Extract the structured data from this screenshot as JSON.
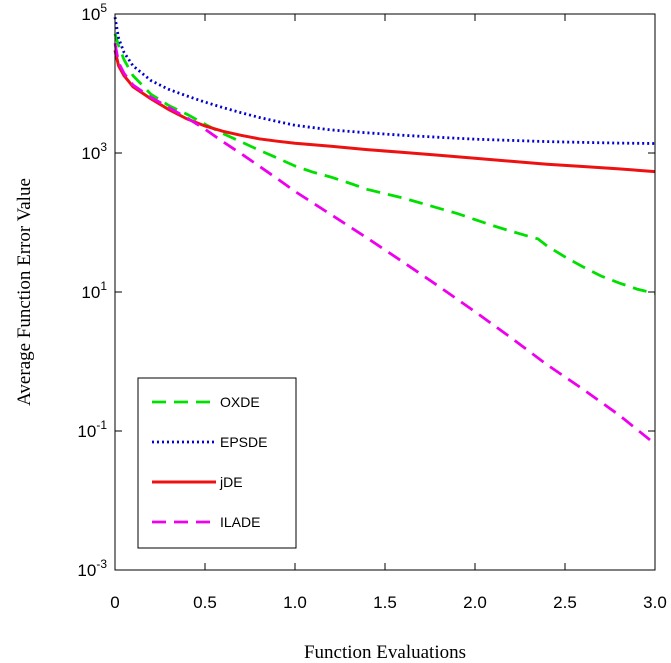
{
  "chart_data": {
    "type": "line",
    "title": "",
    "xlabel": "Function Evaluations",
    "ylabel": "Average Function  Error Value",
    "xlim": [
      0,
      3.0
    ],
    "ylim": [
      0.001,
      100000
    ],
    "yscale": "log",
    "grid": false,
    "legend_position": "bottom-left",
    "x_ticks": [
      {
        "value": 0,
        "label": "0"
      },
      {
        "value": 0.5,
        "label": "0.5"
      },
      {
        "value": 1.0,
        "label": "1.0"
      },
      {
        "value": 1.5,
        "label": "1.5"
      },
      {
        "value": 2.0,
        "label": "2.0"
      },
      {
        "value": 2.5,
        "label": "2.5"
      },
      {
        "value": 3.0,
        "label": "3.0"
      }
    ],
    "y_ticks": [
      {
        "value": 100000,
        "base": "10",
        "exp": "5"
      },
      {
        "value": 1000,
        "base": "10",
        "exp": "3"
      },
      {
        "value": 10,
        "base": "10",
        "exp": "1"
      },
      {
        "value": 0.1,
        "base": "10",
        "exp": "-1"
      },
      {
        "value": 0.001,
        "base": "10",
        "exp": "-3"
      }
    ],
    "series": [
      {
        "name": "OXDE",
        "color": "#00e000",
        "dash": "dashed",
        "points": [
          [
            0,
            52000
          ],
          [
            0.02,
            35000
          ],
          [
            0.05,
            22000
          ],
          [
            0.1,
            13000
          ],
          [
            0.2,
            7000
          ],
          [
            0.3,
            4800
          ],
          [
            0.4,
            3600
          ],
          [
            0.5,
            2600
          ],
          [
            0.6,
            1900
          ],
          [
            0.7,
            1450
          ],
          [
            0.8,
            1100
          ],
          [
            0.9,
            850
          ],
          [
            1.0,
            650
          ],
          [
            1.1,
            530
          ],
          [
            1.2,
            450
          ],
          [
            1.3,
            370
          ],
          [
            1.4,
            300
          ],
          [
            1.5,
            260
          ],
          [
            1.6,
            225
          ],
          [
            1.7,
            190
          ],
          [
            1.8,
            160
          ],
          [
            1.9,
            135
          ],
          [
            2.0,
            110
          ],
          [
            2.1,
            90
          ],
          [
            2.2,
            75
          ],
          [
            2.3,
            63
          ],
          [
            2.35,
            58
          ],
          [
            2.4,
            46
          ],
          [
            2.5,
            32
          ],
          [
            2.6,
            23
          ],
          [
            2.7,
            17
          ],
          [
            2.8,
            13.5
          ],
          [
            2.9,
            11
          ],
          [
            3.0,
            9.5
          ]
        ]
      },
      {
        "name": "EPSDE",
        "color": "#0000d0",
        "dash": "dotted",
        "points": [
          [
            0,
            90000
          ],
          [
            0.02,
            45000
          ],
          [
            0.05,
            28000
          ],
          [
            0.1,
            18000
          ],
          [
            0.2,
            11000
          ],
          [
            0.3,
            8200
          ],
          [
            0.4,
            6600
          ],
          [
            0.5,
            5400
          ],
          [
            0.6,
            4500
          ],
          [
            0.7,
            3800
          ],
          [
            0.8,
            3250
          ],
          [
            0.9,
            2850
          ],
          [
            1.0,
            2500
          ],
          [
            1.2,
            2150
          ],
          [
            1.4,
            1950
          ],
          [
            1.6,
            1800
          ],
          [
            1.8,
            1680
          ],
          [
            2.0,
            1580
          ],
          [
            2.2,
            1520
          ],
          [
            2.4,
            1460
          ],
          [
            2.6,
            1420
          ],
          [
            2.8,
            1390
          ],
          [
            3.0,
            1370
          ]
        ]
      },
      {
        "name": "jDE",
        "color": "#ee1111",
        "dash": "solid",
        "points": [
          [
            0,
            30000
          ],
          [
            0.02,
            18000
          ],
          [
            0.05,
            13000
          ],
          [
            0.1,
            9000
          ],
          [
            0.2,
            6000
          ],
          [
            0.3,
            4200
          ],
          [
            0.4,
            3100
          ],
          [
            0.5,
            2450
          ],
          [
            0.6,
            2050
          ],
          [
            0.7,
            1800
          ],
          [
            0.8,
            1600
          ],
          [
            0.9,
            1480
          ],
          [
            1.0,
            1380
          ],
          [
            1.2,
            1250
          ],
          [
            1.4,
            1120
          ],
          [
            1.6,
            1020
          ],
          [
            1.8,
            930
          ],
          [
            2.0,
            840
          ],
          [
            2.2,
            760
          ],
          [
            2.4,
            690
          ],
          [
            2.6,
            640
          ],
          [
            2.8,
            590
          ],
          [
            3.0,
            540
          ]
        ]
      },
      {
        "name": "ILADE",
        "color": "#ee00ee",
        "dash": "dashed",
        "points": [
          [
            0,
            38000
          ],
          [
            0.02,
            20000
          ],
          [
            0.05,
            14000
          ],
          [
            0.1,
            9500
          ],
          [
            0.2,
            6300
          ],
          [
            0.3,
            4500
          ],
          [
            0.4,
            3200
          ],
          [
            0.5,
            2200
          ],
          [
            0.6,
            1450
          ],
          [
            0.7,
            980
          ],
          [
            0.8,
            650
          ],
          [
            0.9,
            430
          ],
          [
            1.0,
            280
          ],
          [
            1.2,
            130
          ],
          [
            1.4,
            60
          ],
          [
            1.6,
            27
          ],
          [
            1.8,
            12
          ],
          [
            2.0,
            5.2
          ],
          [
            2.2,
            2.2
          ],
          [
            2.4,
            0.9
          ],
          [
            2.6,
            0.4
          ],
          [
            2.8,
            0.17
          ],
          [
            3.0,
            0.065
          ]
        ]
      }
    ]
  }
}
